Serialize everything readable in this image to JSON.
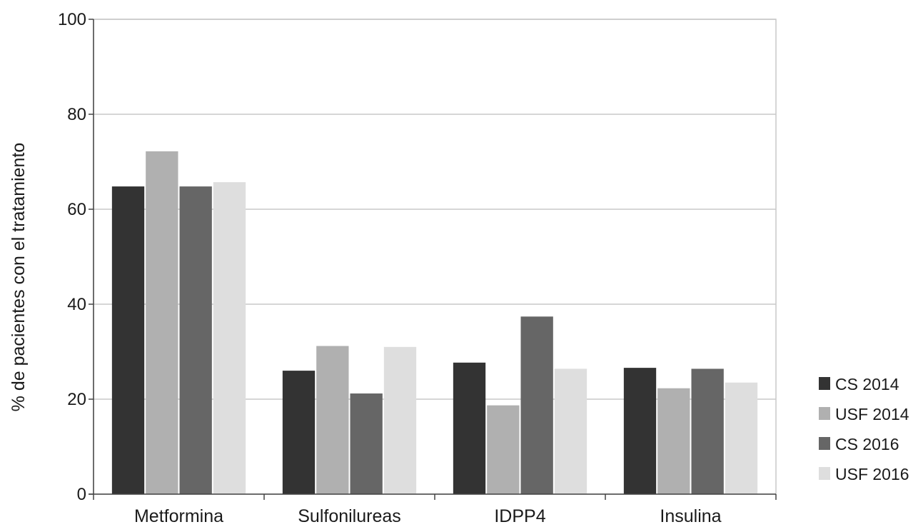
{
  "chart_data": {
    "type": "bar",
    "title": "",
    "xlabel": "",
    "ylabel": "% de pacientes con el tratamiento",
    "ylim": [
      0,
      100
    ],
    "yticks": [
      0,
      20,
      40,
      60,
      80,
      100
    ],
    "grid": true,
    "legend_position": "right",
    "categories": [
      "Metformina",
      "Sulfonilureas",
      "IDPP4",
      "Insulina"
    ],
    "series": [
      {
        "name": "CS 2014",
        "color": "#333333",
        "values": [
          64.8,
          26.0,
          27.7,
          26.6
        ]
      },
      {
        "name": "USF 2014",
        "color": "#b0b0b0",
        "values": [
          72.2,
          31.2,
          18.7,
          22.3
        ]
      },
      {
        "name": "CS 2016",
        "color": "#666666",
        "values": [
          64.8,
          21.2,
          37.4,
          26.4
        ]
      },
      {
        "name": "USF 2016",
        "color": "#dedede",
        "values": [
          65.7,
          31.0,
          26.4,
          23.5
        ]
      }
    ]
  }
}
